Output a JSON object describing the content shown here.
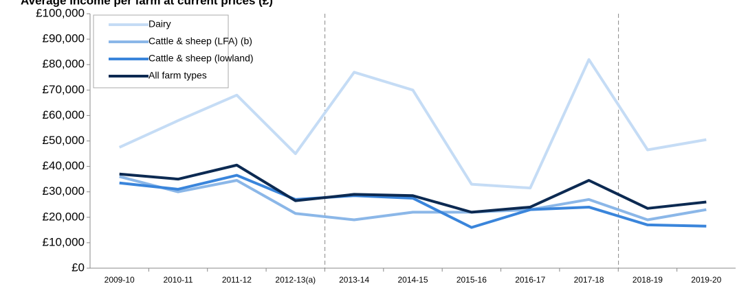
{
  "chart_data": {
    "type": "line",
    "title": "Average income per farm at current prices (£)",
    "categories": [
      "2009-10",
      "2010-11",
      "2011-12",
      "2012-13(a)",
      "2013-14",
      "2014-15",
      "2015-16",
      "2016-17",
      "2017-18",
      "2018-19",
      "2019-20"
    ],
    "series": [
      {
        "name": "Dairy",
        "color": "#c5dcf5",
        "values": [
          47500,
          58000,
          68000,
          45000,
          77000,
          70000,
          33000,
          31500,
          82000,
          46500,
          50500
        ]
      },
      {
        "name": "Cattle & sheep (LFA) (b)",
        "color": "#8bb7e8",
        "values": [
          36000,
          30000,
          34500,
          21500,
          19000,
          22000,
          22000,
          23000,
          27000,
          19000,
          23000
        ]
      },
      {
        "name": "Cattle & sheep (lowland)",
        "color": "#3a85db",
        "values": [
          33500,
          31000,
          36500,
          27000,
          28500,
          27500,
          16000,
          23000,
          24000,
          17000,
          16500
        ]
      },
      {
        "name": "All farm types",
        "color": "#0c2a52",
        "values": [
          37000,
          35000,
          40500,
          26500,
          29000,
          28500,
          22000,
          24000,
          34500,
          23500,
          26000
        ]
      }
    ],
    "ylim": [
      0,
      100000
    ],
    "yticks": [
      {
        "value": 0,
        "label": "£0"
      },
      {
        "value": 10000,
        "label": "£10,000"
      },
      {
        "value": 20000,
        "label": "£20,000"
      },
      {
        "value": 30000,
        "label": "£30,000"
      },
      {
        "value": 40000,
        "label": "£40,000"
      },
      {
        "value": 50000,
        "label": "£50,000"
      },
      {
        "value": 60000,
        "label": "£60,000"
      },
      {
        "value": 70000,
        "label": "£70,000"
      },
      {
        "value": 80000,
        "label": "£80,000"
      },
      {
        "value": 90000,
        "label": "£90,000"
      },
      {
        "value": 100000,
        "label": "£100,000"
      }
    ],
    "legend": "upper left"
  }
}
